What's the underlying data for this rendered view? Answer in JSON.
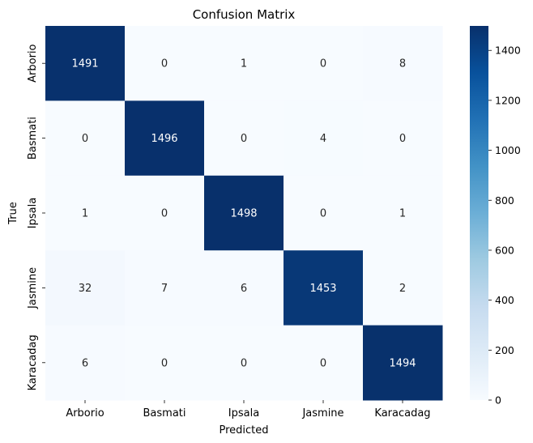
{
  "chart_data": {
    "type": "heatmap",
    "title": "Confusion Matrix",
    "xlabel": "Predicted",
    "ylabel": "True",
    "x_categories": [
      "Arborio",
      "Basmati",
      "Ipsala",
      "Jasmine",
      "Karacadag"
    ],
    "y_categories": [
      "Arborio",
      "Basmati",
      "Ipsala",
      "Jasmine",
      "Karacadag"
    ],
    "values": [
      [
        1491,
        0,
        1,
        0,
        8
      ],
      [
        0,
        1496,
        0,
        4,
        0
      ],
      [
        1,
        0,
        1498,
        0,
        1
      ],
      [
        32,
        7,
        6,
        1453,
        2
      ],
      [
        6,
        0,
        0,
        0,
        1494
      ]
    ],
    "colorscale": "Blues",
    "color_low": "#f7fbff",
    "color_high": "#08306b",
    "vmin": 0,
    "vmax": 1498,
    "colorbar_ticks": [
      0,
      200,
      400,
      600,
      800,
      1000,
      1200,
      1400
    ],
    "annotation_text_dark": "#262626",
    "annotation_text_light": "#ffffff"
  }
}
